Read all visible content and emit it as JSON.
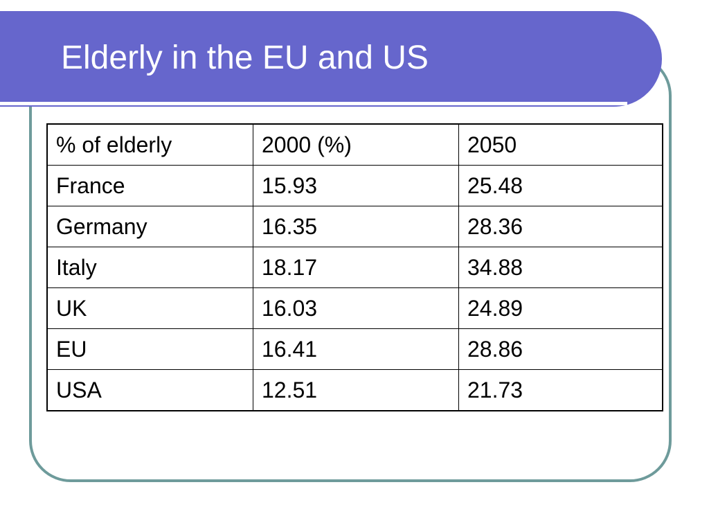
{
  "slide": {
    "title": "Elderly in the EU and US"
  },
  "table": {
    "headers": [
      "% of elderly",
      "2000 (%)",
      "2050"
    ],
    "rows": [
      [
        "France",
        "15.93",
        "25.48"
      ],
      [
        "Germany",
        "16.35",
        "28.36"
      ],
      [
        "Italy",
        "18.17",
        "34.88"
      ],
      [
        "UK",
        "16.03",
        "24.89"
      ],
      [
        "EU",
        "16.41",
        "28.86"
      ],
      [
        "USA",
        "12.51",
        "21.73"
      ]
    ]
  },
  "colors": {
    "title_bar": "#6666cc",
    "frame_border": "#6e9b9b",
    "title_text": "#ffffff"
  }
}
